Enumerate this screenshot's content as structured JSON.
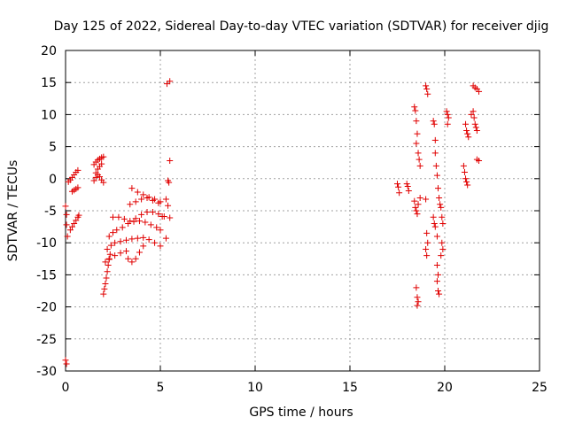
{
  "chart_data": {
    "type": "scatter",
    "title": "Day 125 of 2022, Sidereal Day-to-day VTEC variation (SDTVAR) for receiver djig",
    "xlabel": "GPS time / hours",
    "ylabel": "SDTVAR / TECUs",
    "xlim": [
      0,
      25
    ],
    "ylim": [
      -30,
      20
    ],
    "xticks": [
      "0",
      "5",
      "10",
      "15",
      "20",
      "25"
    ],
    "yticks": [
      "-30",
      "-25",
      "-20",
      "-15",
      "-10",
      "-5",
      "0",
      "5",
      "10",
      "15",
      "20"
    ],
    "grid": true,
    "marker": "+",
    "color": "#e00000",
    "series": [
      {
        "name": "SDTVAR",
        "points": [
          [
            0.0,
            -28.3
          ],
          [
            0.05,
            -28.9
          ],
          [
            0.0,
            -4.3
          ],
          [
            0.05,
            -5.6
          ],
          [
            0.05,
            -7.2
          ],
          [
            0.1,
            -9.0
          ],
          [
            0.15,
            -0.5
          ],
          [
            0.25,
            -0.2
          ],
          [
            0.35,
            0.2
          ],
          [
            0.45,
            0.6
          ],
          [
            0.55,
            1.0
          ],
          [
            0.65,
            1.3
          ],
          [
            0.25,
            -8.0
          ],
          [
            0.35,
            -7.5
          ],
          [
            0.45,
            -7.0
          ],
          [
            0.55,
            -6.5
          ],
          [
            0.65,
            -6.0
          ],
          [
            0.7,
            -5.7
          ],
          [
            0.35,
            -2.0
          ],
          [
            0.45,
            -1.8
          ],
          [
            0.55,
            -1.6
          ],
          [
            0.65,
            -1.4
          ],
          [
            1.5,
            2.2
          ],
          [
            1.6,
            2.6
          ],
          [
            1.7,
            2.9
          ],
          [
            1.8,
            3.1
          ],
          [
            1.9,
            3.3
          ],
          [
            2.0,
            3.4
          ],
          [
            1.5,
            -0.3
          ],
          [
            1.6,
            0.2
          ],
          [
            1.7,
            0.6
          ],
          [
            1.8,
            0.3
          ],
          [
            1.9,
            -0.2
          ],
          [
            2.0,
            -0.6
          ],
          [
            1.6,
            0.9
          ],
          [
            1.7,
            1.5
          ],
          [
            1.8,
            1.9
          ],
          [
            1.9,
            2.3
          ],
          [
            2.0,
            -18.0
          ],
          [
            2.05,
            -17.2
          ],
          [
            2.1,
            -16.4
          ],
          [
            2.15,
            -15.5
          ],
          [
            2.2,
            -14.5
          ],
          [
            2.25,
            -13.5
          ],
          [
            2.3,
            -12.5
          ],
          [
            2.35,
            -11.8
          ],
          [
            2.1,
            -13.0
          ],
          [
            2.3,
            -12.6
          ],
          [
            2.6,
            -12.0
          ],
          [
            2.9,
            -11.6
          ],
          [
            3.2,
            -11.3
          ],
          [
            2.2,
            -11.0
          ],
          [
            2.4,
            -10.4
          ],
          [
            2.6,
            -10.0
          ],
          [
            2.9,
            -9.8
          ],
          [
            3.2,
            -9.6
          ],
          [
            3.5,
            -9.4
          ],
          [
            3.8,
            -9.3
          ],
          [
            4.1,
            -9.2
          ],
          [
            4.4,
            -9.5
          ],
          [
            4.7,
            -10.0
          ],
          [
            5.0,
            -10.5
          ],
          [
            3.3,
            -12.5
          ],
          [
            3.5,
            -13.0
          ],
          [
            3.7,
            -12.5
          ],
          [
            3.9,
            -11.5
          ],
          [
            4.1,
            -10.5
          ],
          [
            2.3,
            -9.0
          ],
          [
            2.5,
            -8.4
          ],
          [
            2.7,
            -8.0
          ],
          [
            3.0,
            -7.6
          ],
          [
            3.3,
            -7.0
          ],
          [
            3.6,
            -6.7
          ],
          [
            3.9,
            -6.6
          ],
          [
            4.2,
            -6.8
          ],
          [
            4.5,
            -7.2
          ],
          [
            4.8,
            -7.6
          ],
          [
            5.0,
            -8.0
          ],
          [
            2.5,
            -6.0
          ],
          [
            2.8,
            -6.0
          ],
          [
            3.1,
            -6.3
          ],
          [
            3.4,
            -6.6
          ],
          [
            3.7,
            -6.2
          ],
          [
            4.0,
            -5.6
          ],
          [
            4.3,
            -5.2
          ],
          [
            4.6,
            -5.2
          ],
          [
            4.9,
            -5.5
          ],
          [
            5.1,
            -5.9
          ],
          [
            3.4,
            -4.0
          ],
          [
            3.7,
            -3.6
          ],
          [
            4.0,
            -3.2
          ],
          [
            4.3,
            -3.0
          ],
          [
            4.6,
            -3.4
          ],
          [
            4.9,
            -3.8
          ],
          [
            3.5,
            -1.5
          ],
          [
            3.8,
            -2.1
          ],
          [
            4.1,
            -2.5
          ],
          [
            4.4,
            -2.9
          ],
          [
            4.7,
            -3.2
          ],
          [
            5.0,
            -3.6
          ],
          [
            5.2,
            -5.9
          ],
          [
            5.3,
            -9.3
          ],
          [
            5.3,
            -3.2
          ],
          [
            5.4,
            -0.3
          ],
          [
            5.45,
            -0.6
          ],
          [
            5.5,
            2.8
          ],
          [
            5.4,
            -4.2
          ],
          [
            5.5,
            -6.1
          ],
          [
            5.35,
            14.8
          ],
          [
            5.5,
            15.2
          ],
          [
            17.5,
            -0.8
          ],
          [
            17.55,
            -1.3
          ],
          [
            17.6,
            -2.2
          ],
          [
            18.0,
            -0.8
          ],
          [
            18.05,
            -1.2
          ],
          [
            18.1,
            -1.9
          ],
          [
            18.4,
            11.2
          ],
          [
            18.45,
            10.6
          ],
          [
            18.5,
            9.0
          ],
          [
            18.55,
            7.0
          ],
          [
            18.5,
            5.5
          ],
          [
            18.6,
            4.0
          ],
          [
            18.65,
            3.0
          ],
          [
            18.7,
            2.0
          ],
          [
            18.4,
            -3.5
          ],
          [
            18.45,
            -4.5
          ],
          [
            18.5,
            -5.0
          ],
          [
            18.55,
            -5.5
          ],
          [
            18.6,
            -4.0
          ],
          [
            18.7,
            -3.0
          ],
          [
            18.5,
            -17.0
          ],
          [
            18.55,
            -18.5
          ],
          [
            18.6,
            -19.2
          ],
          [
            18.55,
            -19.8
          ],
          [
            19.0,
            14.5
          ],
          [
            19.05,
            14.0
          ],
          [
            19.1,
            13.2
          ],
          [
            19.0,
            -3.2
          ],
          [
            19.05,
            -8.5
          ],
          [
            19.1,
            -10.0
          ],
          [
            19.0,
            -11.0
          ],
          [
            19.05,
            -12.0
          ],
          [
            19.4,
            9.0
          ],
          [
            19.45,
            8.5
          ],
          [
            19.5,
            6.0
          ],
          [
            19.5,
            4.0
          ],
          [
            19.55,
            2.0
          ],
          [
            19.6,
            0.5
          ],
          [
            19.65,
            -1.5
          ],
          [
            19.7,
            -3.0
          ],
          [
            19.75,
            -4.0
          ],
          [
            19.4,
            -6.0
          ],
          [
            19.45,
            -7.0
          ],
          [
            19.5,
            -7.5
          ],
          [
            19.6,
            -9.0
          ],
          [
            19.6,
            -13.5
          ],
          [
            19.65,
            -15.0
          ],
          [
            19.6,
            -16.0
          ],
          [
            19.65,
            -17.5
          ],
          [
            19.7,
            -18.0
          ],
          [
            19.8,
            -4.5
          ],
          [
            19.85,
            -6.0
          ],
          [
            19.9,
            -7.0
          ],
          [
            19.85,
            -10.0
          ],
          [
            19.9,
            -11.0
          ],
          [
            19.8,
            -12.0
          ],
          [
            20.1,
            10.5
          ],
          [
            20.15,
            10.0
          ],
          [
            20.2,
            9.5
          ],
          [
            20.15,
            8.5
          ],
          [
            21.0,
            2.0
          ],
          [
            21.05,
            1.0
          ],
          [
            21.1,
            0.0
          ],
          [
            21.15,
            -0.5
          ],
          [
            21.2,
            -1.0
          ],
          [
            21.1,
            8.5
          ],
          [
            21.15,
            7.5
          ],
          [
            21.2,
            7.0
          ],
          [
            21.25,
            6.5
          ],
          [
            21.4,
            10.0
          ],
          [
            21.5,
            10.5
          ],
          [
            21.55,
            9.5
          ],
          [
            21.6,
            8.5
          ],
          [
            21.65,
            8.0
          ],
          [
            21.7,
            7.5
          ],
          [
            21.5,
            14.5
          ],
          [
            21.6,
            14.2
          ],
          [
            21.7,
            14.0
          ],
          [
            21.8,
            13.6
          ],
          [
            21.7,
            3.0
          ],
          [
            21.8,
            2.8
          ]
        ]
      }
    ]
  }
}
